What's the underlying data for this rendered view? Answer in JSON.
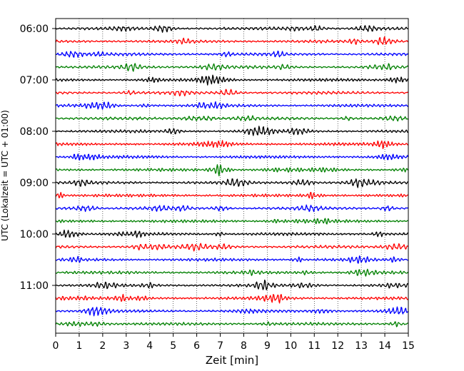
{
  "chart_data": {
    "type": "line",
    "subtype": "helicorder-seismogram",
    "xlabel": "Zeit  [min]",
    "ylabel": "UTC (Lokalzeit = UTC + 01:00)",
    "xlim": [
      0,
      15
    ],
    "x_ticks": [
      "0",
      "1",
      "2",
      "3",
      "4",
      "5",
      "6",
      "7",
      "8",
      "9",
      "10",
      "11",
      "12",
      "13",
      "14",
      "15"
    ],
    "y_ticks": [
      "06:00",
      "07:00",
      "08:00",
      "09:00",
      "10:00",
      "11:00"
    ],
    "grid": "vertical dotted lines at each minute",
    "traces_per_hour": 4,
    "trace_minutes": 15,
    "trace_count": 24,
    "time_start": "06:00",
    "time_end": "12:00",
    "colors": [
      "#000000",
      "#ff0000",
      "#0000ff",
      "#008000"
    ]
  }
}
